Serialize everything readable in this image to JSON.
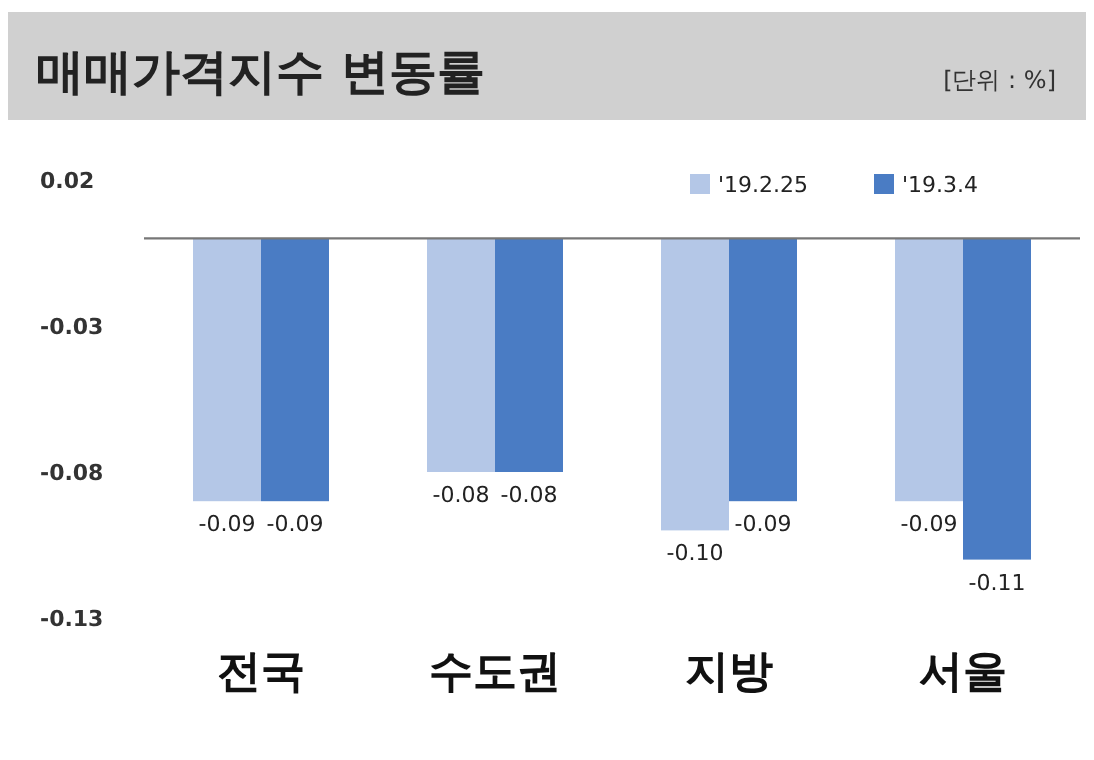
{
  "chart_data": {
    "type": "bar",
    "title": "매매가격지수 변동률",
    "annotations": [
      "[단위 : %]"
    ],
    "categories": [
      "전국",
      "수도권",
      "지방",
      "서울"
    ],
    "series": [
      {
        "name": "'19.2.25",
        "color": "#b4c7e7",
        "values": [
          -0.09,
          -0.08,
          -0.1,
          -0.09
        ],
        "value_labels": [
          "-0.09",
          "-0.08",
          "-0.10",
          "-0.09"
        ]
      },
      {
        "name": "'19.3.4",
        "color": "#4a7cc4",
        "values": [
          -0.09,
          -0.08,
          -0.09,
          -0.11
        ],
        "value_labels": [
          "-0.09",
          "-0.08",
          "-0.09",
          "-0.11"
        ]
      }
    ],
    "ylim": [
      -0.13,
      0.02
    ],
    "yticks": [
      0.02,
      -0.03,
      -0.08,
      -0.13
    ],
    "legend": "top right",
    "grid": false
  }
}
